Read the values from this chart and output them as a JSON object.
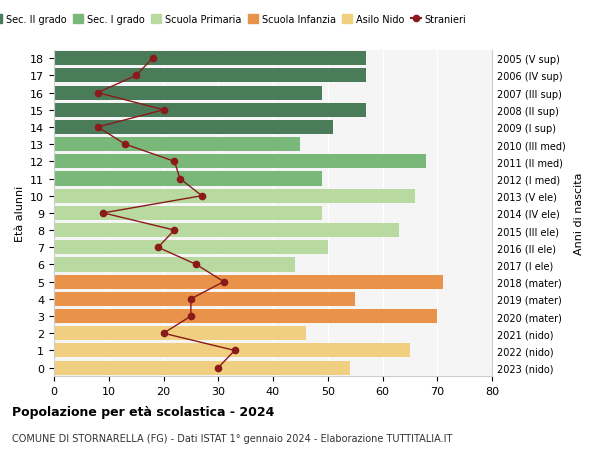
{
  "ages": [
    18,
    17,
    16,
    15,
    14,
    13,
    12,
    11,
    10,
    9,
    8,
    7,
    6,
    5,
    4,
    3,
    2,
    1,
    0
  ],
  "anni_nascita": [
    "2005 (V sup)",
    "2006 (IV sup)",
    "2007 (III sup)",
    "2008 (II sup)",
    "2009 (I sup)",
    "2010 (III med)",
    "2011 (II med)",
    "2012 (I med)",
    "2013 (V ele)",
    "2014 (IV ele)",
    "2015 (III ele)",
    "2016 (II ele)",
    "2017 (I ele)",
    "2018 (mater)",
    "2019 (mater)",
    "2020 (mater)",
    "2021 (nido)",
    "2022 (nido)",
    "2023 (nido)"
  ],
  "bar_values": [
    57,
    57,
    49,
    57,
    51,
    45,
    68,
    49,
    66,
    49,
    63,
    50,
    44,
    71,
    55,
    70,
    46,
    65,
    54
  ],
  "stranieri": [
    18,
    15,
    8,
    20,
    8,
    13,
    22,
    23,
    27,
    9,
    22,
    19,
    26,
    31,
    25,
    25,
    20,
    33,
    30
  ],
  "colors": {
    "sec2": "#4a7c59",
    "sec1": "#7ab87a",
    "primaria": "#b8d9a0",
    "infanzia": "#e8924a",
    "nido": "#f0d080",
    "stranieri_line": "#8b1a1a",
    "stranieri_marker": "#8b1a1a"
  },
  "legend_labels": [
    "Sec. II grado",
    "Sec. I grado",
    "Scuola Primaria",
    "Scuola Infanzia",
    "Asilo Nido",
    "Stranieri"
  ],
  "title": "Popolazione per età scolastica - 2024",
  "subtitle": "COMUNE DI STORNARELLA (FG) - Dati ISTAT 1° gennaio 2024 - Elaborazione TUTTITALIA.IT",
  "ylabel_left": "Età alunni",
  "ylabel_right": "Anni di nascita",
  "xlim": [
    0,
    80
  ],
  "bar_height": 0.82,
  "grid_color": "#dddddd",
  "bg_color": "#f5f5f5"
}
